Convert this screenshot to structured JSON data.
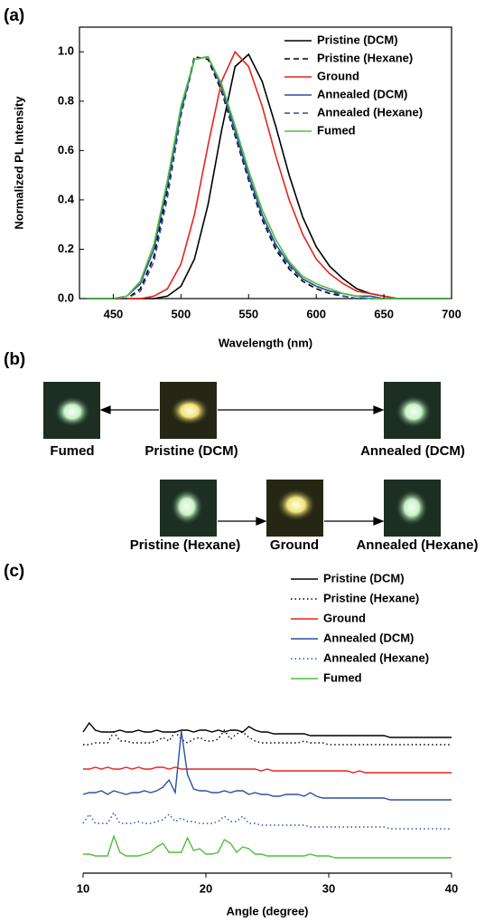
{
  "chart_data": [
    {
      "type": "line",
      "panel_label": "(a)",
      "x_label": "Wavelength (nm)",
      "y_label": "Normalized PL Intensity",
      "xlim": [
        425,
        700
      ],
      "xticks": [
        450,
        500,
        550,
        600,
        650,
        700
      ],
      "ylim": [
        0,
        1.1
      ],
      "yticks": [
        {
          "value": 0,
          "label": "0.0"
        },
        0.2,
        0.4,
        0.6,
        0.8,
        {
          "value": 1,
          "label": "1.0"
        }
      ],
      "legend": "top-right",
      "x": [
        430,
        440,
        450,
        460,
        470,
        480,
        490,
        500,
        510,
        520,
        530,
        540,
        550,
        560,
        570,
        580,
        590,
        600,
        610,
        620,
        630,
        640,
        650,
        660,
        670,
        680,
        690,
        700
      ],
      "series": [
        {
          "name": "Pristine (DCM)",
          "color": "#000000",
          "dash": "solid",
          "values": [
            0,
            0,
            0,
            0,
            0,
            0,
            0.01,
            0.05,
            0.16,
            0.38,
            0.68,
            0.94,
            0.99,
            0.88,
            0.7,
            0.5,
            0.33,
            0.21,
            0.13,
            0.08,
            0.04,
            0.02,
            0.01,
            0,
            0,
            0,
            0,
            0
          ]
        },
        {
          "name": "Pristine (Hexane)",
          "color": "#000000",
          "dash": "dashed",
          "values": [
            0,
            0,
            0,
            0,
            0.04,
            0.17,
            0.44,
            0.76,
            0.98,
            0.97,
            0.84,
            0.66,
            0.48,
            0.32,
            0.2,
            0.12,
            0.07,
            0.04,
            0.02,
            0.01,
            0,
            0,
            0,
            0,
            0,
            0,
            0,
            0
          ]
        },
        {
          "name": "Ground",
          "color": "#e8231c",
          "dash": "solid",
          "values": [
            0,
            0,
            0,
            0,
            0,
            0.01,
            0.04,
            0.14,
            0.34,
            0.62,
            0.88,
            1,
            0.94,
            0.78,
            0.58,
            0.4,
            0.26,
            0.16,
            0.1,
            0.06,
            0.03,
            0.02,
            0.01,
            0,
            0,
            0,
            0,
            0
          ]
        },
        {
          "name": "Annealed (DCM)",
          "color": "#2e4fa3",
          "dash": "solid",
          "values": [
            0,
            0,
            0,
            0.01,
            0.06,
            0.2,
            0.46,
            0.76,
            0.97,
            0.98,
            0.86,
            0.68,
            0.5,
            0.34,
            0.22,
            0.14,
            0.08,
            0.05,
            0.03,
            0.02,
            0.01,
            0.01,
            0,
            0,
            0,
            0,
            0,
            0
          ]
        },
        {
          "name": "Annealed (Hexane)",
          "color": "#2e4fa3",
          "dash": "dashed",
          "values": [
            0,
            0,
            0,
            0,
            0.03,
            0.15,
            0.41,
            0.74,
            0.97,
            0.98,
            0.85,
            0.67,
            0.49,
            0.33,
            0.21,
            0.13,
            0.08,
            0.05,
            0.03,
            0.01,
            0,
            0,
            0,
            0,
            0,
            0,
            0,
            0
          ]
        },
        {
          "name": "Fumed",
          "color": "#4fbf3a",
          "dash": "solid",
          "values": [
            0,
            0,
            0,
            0.01,
            0.07,
            0.22,
            0.48,
            0.78,
            0.97,
            0.98,
            0.87,
            0.7,
            0.52,
            0.36,
            0.24,
            0.15,
            0.09,
            0.06,
            0.04,
            0.02,
            0.01,
            0,
            0,
            0,
            0,
            0,
            0,
            0
          ]
        }
      ]
    },
    {
      "type": "stacked-trace",
      "panel_label": "(c)",
      "x_label": "Angle (degree)",
      "xlim": [
        10,
        40
      ],
      "xticks": [
        10,
        20,
        30,
        40
      ],
      "legend": "top-right",
      "x": [
        10,
        10.5,
        11,
        11.5,
        12,
        12.5,
        13,
        13.5,
        14,
        14.5,
        15,
        15.5,
        16,
        16.5,
        17,
        17.5,
        18,
        18.5,
        19,
        19.5,
        20,
        20.5,
        21,
        21.5,
        22,
        22.5,
        23,
        23.5,
        24,
        24.5,
        25,
        25.5,
        26,
        26.5,
        27,
        27.5,
        28,
        28.5,
        29,
        29.5,
        30,
        30.5,
        31,
        31.5,
        32,
        32.5,
        33,
        33.5,
        34,
        34.5,
        35,
        35.5,
        36,
        36.5,
        37,
        37.5,
        38,
        38.5,
        39,
        39.5,
        40
      ],
      "series": [
        {
          "name": "Pristine (DCM)",
          "color": "#000000",
          "dash": "solid",
          "values": [
            3,
            8,
            4,
            3,
            3,
            3,
            4,
            3,
            3,
            4,
            3,
            3,
            4,
            3,
            3,
            3,
            4,
            4,
            3,
            4,
            4,
            3,
            4,
            3,
            4,
            4,
            3,
            6,
            4,
            3,
            3,
            2,
            2,
            2,
            2,
            2,
            2,
            1,
            1,
            1,
            1,
            1,
            1,
            1,
            1,
            1,
            1,
            1,
            1,
            1,
            0,
            0,
            0,
            0,
            0,
            0,
            0,
            0,
            0,
            0,
            0
          ]
        },
        {
          "name": "Pristine (Hexane)",
          "color": "#000000",
          "dash": "dotted",
          "values": [
            0,
            0,
            1,
            1,
            1,
            7,
            2,
            2,
            1,
            1,
            1,
            1,
            2,
            4,
            2,
            7,
            3,
            1,
            3,
            4,
            2,
            2,
            3,
            8,
            3,
            6,
            7,
            4,
            2,
            1,
            1,
            1,
            1,
            1,
            1,
            1,
            2,
            1,
            1,
            1,
            0,
            0,
            0,
            0,
            0,
            0,
            0,
            0,
            0,
            0,
            0,
            0,
            0,
            0,
            0,
            0,
            0,
            0,
            0,
            0,
            0
          ]
        },
        {
          "name": "Ground",
          "color": "#e8231c",
          "dash": "solid",
          "values": [
            2,
            2,
            3,
            2,
            3,
            2,
            2,
            3,
            2,
            3,
            2,
            2,
            3,
            3,
            2,
            3,
            2,
            2,
            2,
            2,
            2,
            2,
            2,
            2,
            2,
            2,
            2,
            2,
            2,
            1,
            2,
            1,
            1,
            1,
            1,
            1,
            1,
            1,
            1,
            1,
            1,
            1,
            1,
            1,
            0,
            1,
            0,
            0,
            0,
            0,
            0,
            0,
            0,
            0,
            0,
            0,
            0,
            0,
            0,
            0,
            0
          ]
        },
        {
          "name": "Annealed (DCM)",
          "color": "#2e4fa3",
          "dash": "solid",
          "values": [
            3,
            4,
            4,
            5,
            3,
            5,
            4,
            3,
            4,
            4,
            5,
            4,
            5,
            7,
            11,
            4,
            38,
            14,
            6,
            5,
            5,
            4,
            4,
            5,
            4,
            5,
            5,
            3,
            4,
            3,
            3,
            2,
            2,
            3,
            3,
            3,
            2,
            4,
            2,
            1,
            1,
            1,
            1,
            1,
            1,
            1,
            1,
            1,
            1,
            1,
            0,
            0,
            0,
            0,
            0,
            0,
            0,
            0,
            0,
            0,
            0
          ]
        },
        {
          "name": "Annealed (Hexane)",
          "color": "#2e4fa3",
          "dash": "dotted",
          "values": [
            3,
            8,
            3,
            3,
            3,
            9,
            3,
            3,
            3,
            4,
            3,
            3,
            4,
            5,
            8,
            4,
            6,
            4,
            4,
            3,
            3,
            3,
            4,
            7,
            4,
            4,
            7,
            3,
            3,
            2,
            2,
            2,
            2,
            2,
            2,
            2,
            2,
            1,
            1,
            1,
            1,
            1,
            1,
            1,
            1,
            1,
            1,
            1,
            1,
            1,
            0,
            0,
            0,
            0,
            0,
            0,
            0,
            0,
            0,
            0,
            0
          ]
        },
        {
          "name": "Fumed",
          "color": "#4fbf3a",
          "dash": "solid",
          "values": [
            2,
            2,
            1,
            1,
            1,
            12,
            3,
            1,
            1,
            1,
            2,
            3,
            6,
            8,
            3,
            3,
            3,
            11,
            4,
            5,
            2,
            2,
            3,
            10,
            8,
            3,
            6,
            5,
            2,
            2,
            1,
            1,
            1,
            1,
            1,
            1,
            1,
            2,
            1,
            1,
            1,
            0,
            0,
            0,
            0,
            0,
            0,
            0,
            0,
            0,
            0,
            0,
            0,
            0,
            0,
            0,
            0,
            0,
            0,
            0,
            0
          ]
        }
      ]
    }
  ],
  "diagram": {
    "panel_label": "(b)",
    "labels": [
      "Fumed",
      "Pristine (DCM)",
      "Annealed (DCM)",
      "Pristine (Hexane)",
      "Ground",
      "Annealed (Hexane)"
    ]
  }
}
